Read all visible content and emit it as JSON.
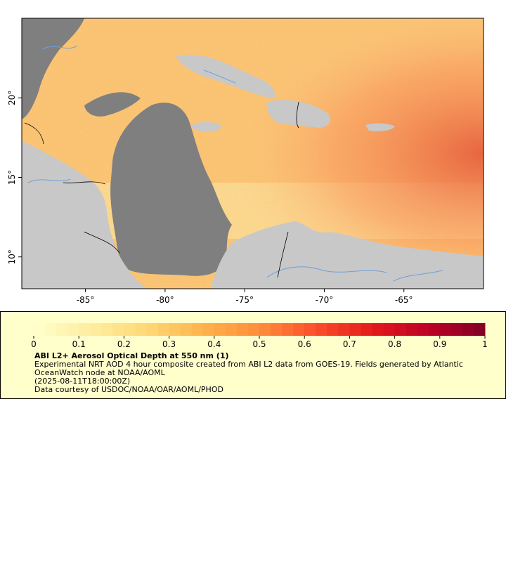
{
  "map": {
    "x_ticks": [
      {
        "lon": -85,
        "label": "-85°"
      },
      {
        "lon": -80,
        "label": "-80°"
      },
      {
        "lon": -75,
        "label": "-75°"
      },
      {
        "lon": -70,
        "label": "-70°"
      },
      {
        "lon": -65,
        "label": "-65°"
      }
    ],
    "y_ticks": [
      {
        "lat": 20,
        "label": "20°"
      },
      {
        "lat": 15,
        "label": "15°"
      },
      {
        "lat": 10,
        "label": "10°"
      }
    ],
    "lon_range": [
      -89,
      -60
    ],
    "lat_range": [
      8,
      25
    ],
    "colors": {
      "land": "#c8c8c8",
      "water": "#7f7f7f",
      "river": "#6fa0d8",
      "border": "#000000"
    }
  },
  "legend": {
    "ticks": [
      "0",
      "0.1",
      "0.2",
      "0.3",
      "0.4",
      "0.5",
      "0.6",
      "0.7",
      "0.8",
      "0.9",
      "1"
    ],
    "title": "ABI L2+ Aerosol Optical Depth at 550 nm (1)",
    "line1": "Experimental NRT AOD 4 hour composite created from ABI L2 data from GOES-19. Fields generated by Atlantic OceanWatch node at NOAA/AOML",
    "line2": "(2025-08-11T18:00:00Z)",
    "line3": "Data courtesy of USDOC/NOAA/OAR/AOML/PHOD",
    "colormap": [
      "#ffffcc",
      "#ffeda0",
      "#fed976",
      "#feb24c",
      "#fd8d3c",
      "#fc4e2a",
      "#e31a1c",
      "#bd0026",
      "#800026"
    ]
  }
}
